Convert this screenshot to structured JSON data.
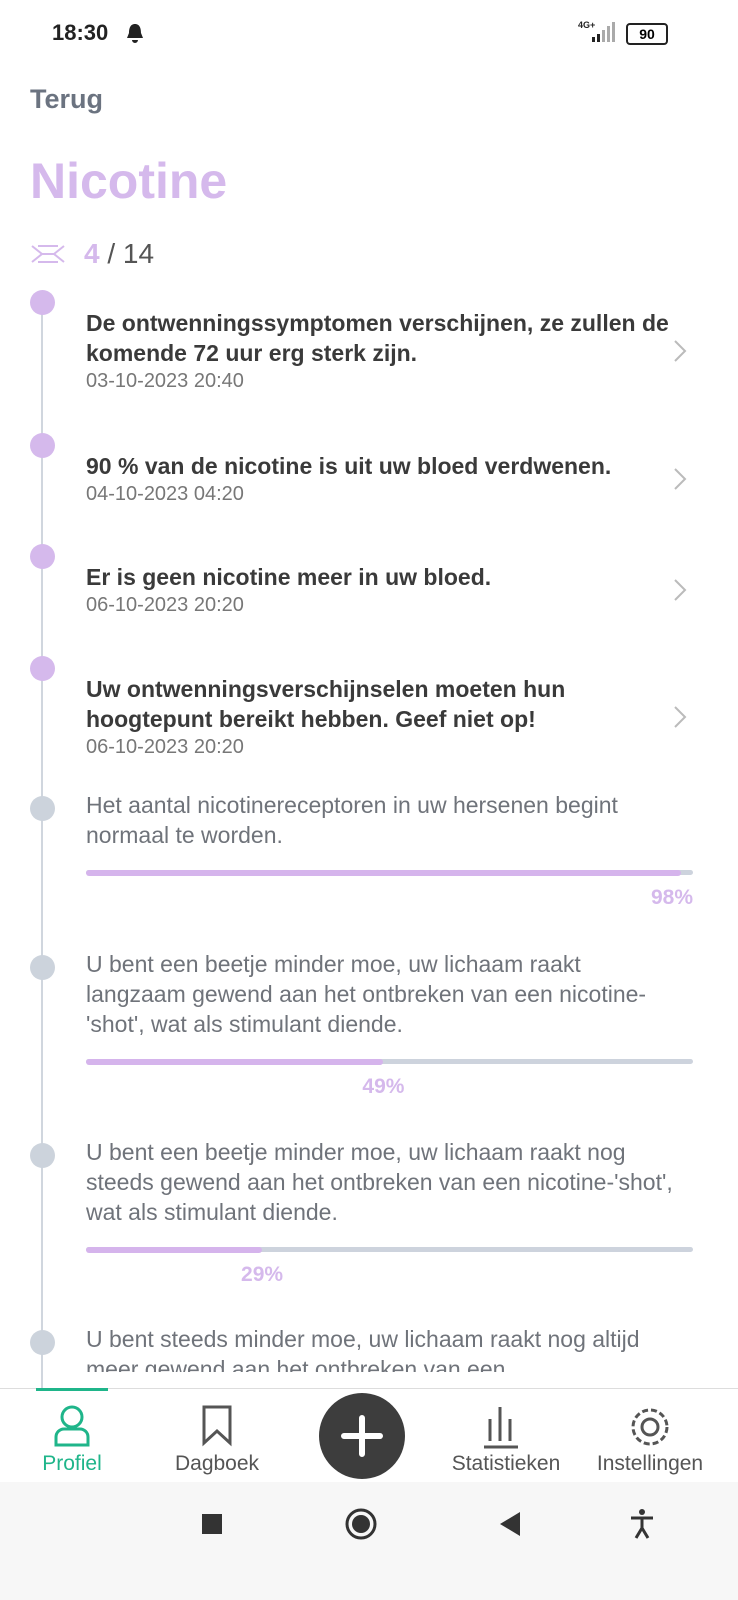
{
  "status_bar": {
    "time": "18:30",
    "network": "4G+",
    "battery": "90"
  },
  "header": {
    "back": "Terug",
    "title": "Nicotine",
    "progress": {
      "current": "4",
      "separator": "/",
      "total": "14"
    }
  },
  "timeline": [
    {
      "title": "De ontwenningssymptomen verschijnen, ze zullen de komende 72 uur erg sterk zijn.",
      "date": "03-10-2023 20:40"
    },
    {
      "title": "90 % van de nicotine is uit uw bloed verdwenen.",
      "date": "04-10-2023 04:20"
    },
    {
      "title": "Er is geen nicotine meer in uw bloed.",
      "date": "06-10-2023 20:20"
    },
    {
      "title": "Uw ontwenningsverschijnselen moeten hun hoogtepunt bereikt hebben. Geef niet op!",
      "date": "06-10-2023 20:20"
    },
    {
      "text": "Het aantal nicotinereceptoren in uw hersenen begint normaal te worden.",
      "percent": 98,
      "percent_label": "98%"
    },
    {
      "text": "U bent een beetje minder moe, uw lichaam raakt langzaam gewend aan het ontbreken van een nicotine-'shot', wat als stimulant diende.",
      "percent": 49,
      "percent_label": "49%"
    },
    {
      "text": "U bent een beetje minder moe, uw lichaam raakt nog steeds gewend aan het ontbreken van een nicotine-'shot', wat als stimulant diende.",
      "percent": 29,
      "percent_label": "29%"
    },
    {
      "text": "U bent steeds minder moe, uw lichaam raakt nog altijd meer gewend aan het ontbreken van een"
    }
  ],
  "nav": {
    "items": [
      "Profiel",
      "Dagboek",
      "Statistieken",
      "Instellingen"
    ]
  }
}
